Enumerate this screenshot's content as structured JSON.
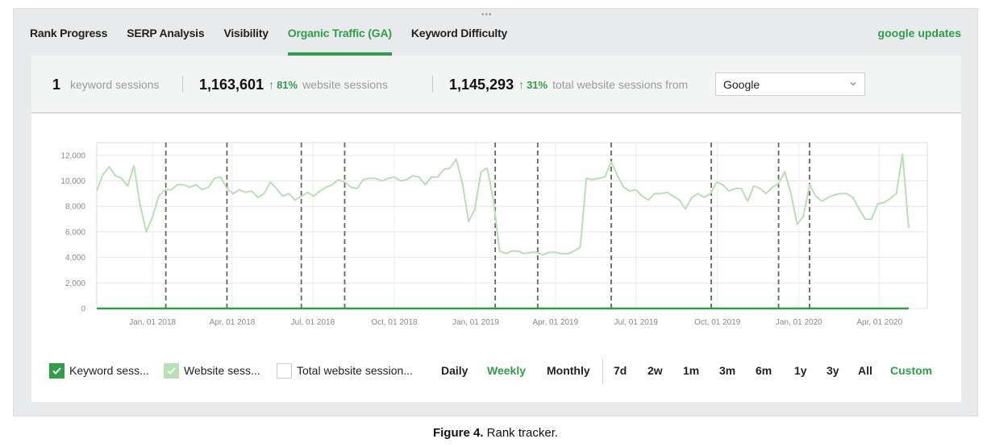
{
  "tabs": [
    {
      "label": "Rank Progress",
      "active": false
    },
    {
      "label": "SERP Analysis",
      "active": false
    },
    {
      "label": "Visibility",
      "active": false
    },
    {
      "label": "Organic Traffic (GA)",
      "active": true
    },
    {
      "label": "Keyword Difficulty",
      "active": false
    }
  ],
  "google_updates_label": "google updates",
  "stats": {
    "keyword": {
      "value": "1",
      "label": "keyword sessions"
    },
    "website": {
      "value": "1,163,601",
      "delta": "81%",
      "label": "website sessions"
    },
    "total": {
      "value": "1,145,293",
      "delta": "31%",
      "label": "total website sessions from"
    },
    "source_select": {
      "value": "Google"
    }
  },
  "chart_data": {
    "type": "line",
    "x_tick_labels": [
      "Jan, 01 2018",
      "Apr, 01 2018",
      "Jul, 01 2018",
      "Oct, 01 2018",
      "Jan, 01 2019",
      "Apr, 01 2019",
      "Jul, 01 2019",
      "Oct, 01 2019",
      "Jan, 01 2020",
      "Apr, 01 2020"
    ],
    "y_tick_labels": [
      "0",
      "2,000",
      "4,000",
      "6,000",
      "8,000",
      "10,000",
      "12,000"
    ],
    "ylim": [
      0,
      13000
    ],
    "x_range": [
      "2017-10-30",
      "2020-05-25"
    ],
    "grid": true,
    "google_update_dates": [
      "2018-01-16",
      "2018-03-26",
      "2018-06-18",
      "2018-08-06",
      "2019-01-23",
      "2019-03-12",
      "2019-06-03",
      "2019-09-24",
      "2019-12-09",
      "2020-01-13"
    ],
    "series": [
      {
        "name": "Website sessions",
        "color": "#b8dfb5",
        "points": [
          [
            "2017-10-30",
            9200
          ],
          [
            "2017-11-06",
            10500
          ],
          [
            "2017-11-13",
            11100
          ],
          [
            "2017-11-20",
            10400
          ],
          [
            "2017-11-27",
            10200
          ],
          [
            "2017-12-04",
            9600
          ],
          [
            "2017-12-11",
            11200
          ],
          [
            "2017-12-18",
            8100
          ],
          [
            "2017-12-25",
            6000
          ],
          [
            "2018-01-01",
            7200
          ],
          [
            "2018-01-08",
            8800
          ],
          [
            "2018-01-15",
            9300
          ],
          [
            "2018-01-22",
            9300
          ],
          [
            "2018-01-29",
            9700
          ],
          [
            "2018-02-05",
            9700
          ],
          [
            "2018-02-12",
            9500
          ],
          [
            "2018-02-19",
            9700
          ],
          [
            "2018-02-26",
            9300
          ],
          [
            "2018-03-05",
            9500
          ],
          [
            "2018-03-12",
            10200
          ],
          [
            "2018-03-19",
            10300
          ],
          [
            "2018-03-26",
            9400
          ],
          [
            "2018-04-02",
            9000
          ],
          [
            "2018-04-09",
            9300
          ],
          [
            "2018-04-16",
            9100
          ],
          [
            "2018-04-23",
            9200
          ],
          [
            "2018-04-30",
            8700
          ],
          [
            "2018-05-07",
            9000
          ],
          [
            "2018-05-14",
            9900
          ],
          [
            "2018-05-21",
            9400
          ],
          [
            "2018-05-28",
            8800
          ],
          [
            "2018-06-04",
            9000
          ],
          [
            "2018-06-11",
            8500
          ],
          [
            "2018-06-18",
            8800
          ],
          [
            "2018-06-25",
            9100
          ],
          [
            "2018-07-02",
            8800
          ],
          [
            "2018-07-09",
            9200
          ],
          [
            "2018-07-16",
            9500
          ],
          [
            "2018-07-23",
            9700
          ],
          [
            "2018-07-30",
            10100
          ],
          [
            "2018-08-06",
            9900
          ],
          [
            "2018-08-13",
            9500
          ],
          [
            "2018-08-20",
            9400
          ],
          [
            "2018-08-27",
            10100
          ],
          [
            "2018-09-03",
            10200
          ],
          [
            "2018-09-10",
            10200
          ],
          [
            "2018-09-17",
            10000
          ],
          [
            "2018-09-24",
            10200
          ],
          [
            "2018-10-01",
            10300
          ],
          [
            "2018-10-08",
            10000
          ],
          [
            "2018-10-15",
            10100
          ],
          [
            "2018-10-22",
            10400
          ],
          [
            "2018-10-29",
            10300
          ],
          [
            "2018-11-05",
            9700
          ],
          [
            "2018-11-12",
            10300
          ],
          [
            "2018-11-19",
            10300
          ],
          [
            "2018-11-26",
            10900
          ],
          [
            "2018-12-03",
            11000
          ],
          [
            "2018-12-10",
            11700
          ],
          [
            "2018-12-17",
            9800
          ],
          [
            "2018-12-24",
            6800
          ],
          [
            "2018-12-31",
            7800
          ],
          [
            "2019-01-07",
            10700
          ],
          [
            "2019-01-14",
            11000
          ],
          [
            "2019-01-21",
            8500
          ],
          [
            "2019-01-28",
            4500
          ],
          [
            "2019-02-04",
            4300
          ],
          [
            "2019-02-11",
            4500
          ],
          [
            "2019-02-18",
            4500
          ],
          [
            "2019-02-25",
            4300
          ],
          [
            "2019-03-04",
            4400
          ],
          [
            "2019-03-11",
            4400
          ],
          [
            "2019-03-18",
            4200
          ],
          [
            "2019-03-25",
            4400
          ],
          [
            "2019-04-01",
            4400
          ],
          [
            "2019-04-08",
            4300
          ],
          [
            "2019-04-15",
            4300
          ],
          [
            "2019-04-22",
            4500
          ],
          [
            "2019-04-29",
            4800
          ],
          [
            "2019-05-06",
            10200
          ],
          [
            "2019-05-13",
            10100
          ],
          [
            "2019-05-20",
            10200
          ],
          [
            "2019-05-27",
            10300
          ],
          [
            "2019-06-03",
            11500
          ],
          [
            "2019-06-10",
            10400
          ],
          [
            "2019-06-17",
            9500
          ],
          [
            "2019-06-24",
            9200
          ],
          [
            "2019-07-01",
            9300
          ],
          [
            "2019-07-08",
            8800
          ],
          [
            "2019-07-15",
            8500
          ],
          [
            "2019-07-22",
            9000
          ],
          [
            "2019-07-29",
            9000
          ],
          [
            "2019-08-05",
            9100
          ],
          [
            "2019-08-12",
            8800
          ],
          [
            "2019-08-19",
            8500
          ],
          [
            "2019-08-26",
            7800
          ],
          [
            "2019-09-02",
            8700
          ],
          [
            "2019-09-09",
            9000
          ],
          [
            "2019-09-16",
            8700
          ],
          [
            "2019-09-23",
            9000
          ],
          [
            "2019-09-30",
            9900
          ],
          [
            "2019-10-07",
            9700
          ],
          [
            "2019-10-14",
            9200
          ],
          [
            "2019-10-21",
            9400
          ],
          [
            "2019-10-28",
            9400
          ],
          [
            "2019-11-04",
            8400
          ],
          [
            "2019-11-11",
            9600
          ],
          [
            "2019-11-18",
            9400
          ],
          [
            "2019-11-25",
            9000
          ],
          [
            "2019-12-02",
            9500
          ],
          [
            "2019-12-09",
            9800
          ],
          [
            "2019-12-16",
            10700
          ],
          [
            "2019-12-23",
            9000
          ],
          [
            "2019-12-30",
            6600
          ],
          [
            "2020-01-06",
            7200
          ],
          [
            "2020-01-13",
            9700
          ],
          [
            "2020-01-20",
            8800
          ],
          [
            "2020-01-27",
            8400
          ],
          [
            "2020-02-03",
            8700
          ],
          [
            "2020-02-10",
            8900
          ],
          [
            "2020-02-17",
            9000
          ],
          [
            "2020-02-24",
            9000
          ],
          [
            "2020-03-02",
            8700
          ],
          [
            "2020-03-09",
            7800
          ],
          [
            "2020-03-16",
            7000
          ],
          [
            "2020-03-23",
            7000
          ],
          [
            "2020-03-30",
            8200
          ],
          [
            "2020-04-06",
            8300
          ],
          [
            "2020-04-13",
            8600
          ],
          [
            "2020-04-20",
            9000
          ],
          [
            "2020-04-27",
            12100
          ],
          [
            "2020-05-04",
            6300
          ]
        ]
      },
      {
        "name": "Keyword sessions",
        "color": "#2e9e47",
        "points": [
          [
            "2017-10-30",
            0
          ],
          [
            "2020-05-04",
            0
          ]
        ]
      }
    ]
  },
  "legend": {
    "items": [
      {
        "label": "Keyword sess...",
        "checked": true
      },
      {
        "label": "Website sess...",
        "checked": true
      },
      {
        "label": "Total website session...",
        "checked": false
      }
    ],
    "granularity": [
      {
        "label": "Daily",
        "active": false
      },
      {
        "label": "Weekly",
        "active": true
      },
      {
        "label": "Monthly",
        "active": false
      }
    ],
    "ranges": [
      {
        "label": "7d",
        "active": false
      },
      {
        "label": "2w",
        "active": false
      },
      {
        "label": "1m",
        "active": false
      },
      {
        "label": "3m",
        "active": false
      },
      {
        "label": "6m",
        "active": false
      },
      {
        "label": "1y",
        "active": false
      },
      {
        "label": "3y",
        "active": false
      },
      {
        "label": "All",
        "active": false
      },
      {
        "label": "Custom",
        "active": true
      }
    ]
  },
  "caption": {
    "figure": "Figure 4.",
    "text": "Rank tracker."
  }
}
